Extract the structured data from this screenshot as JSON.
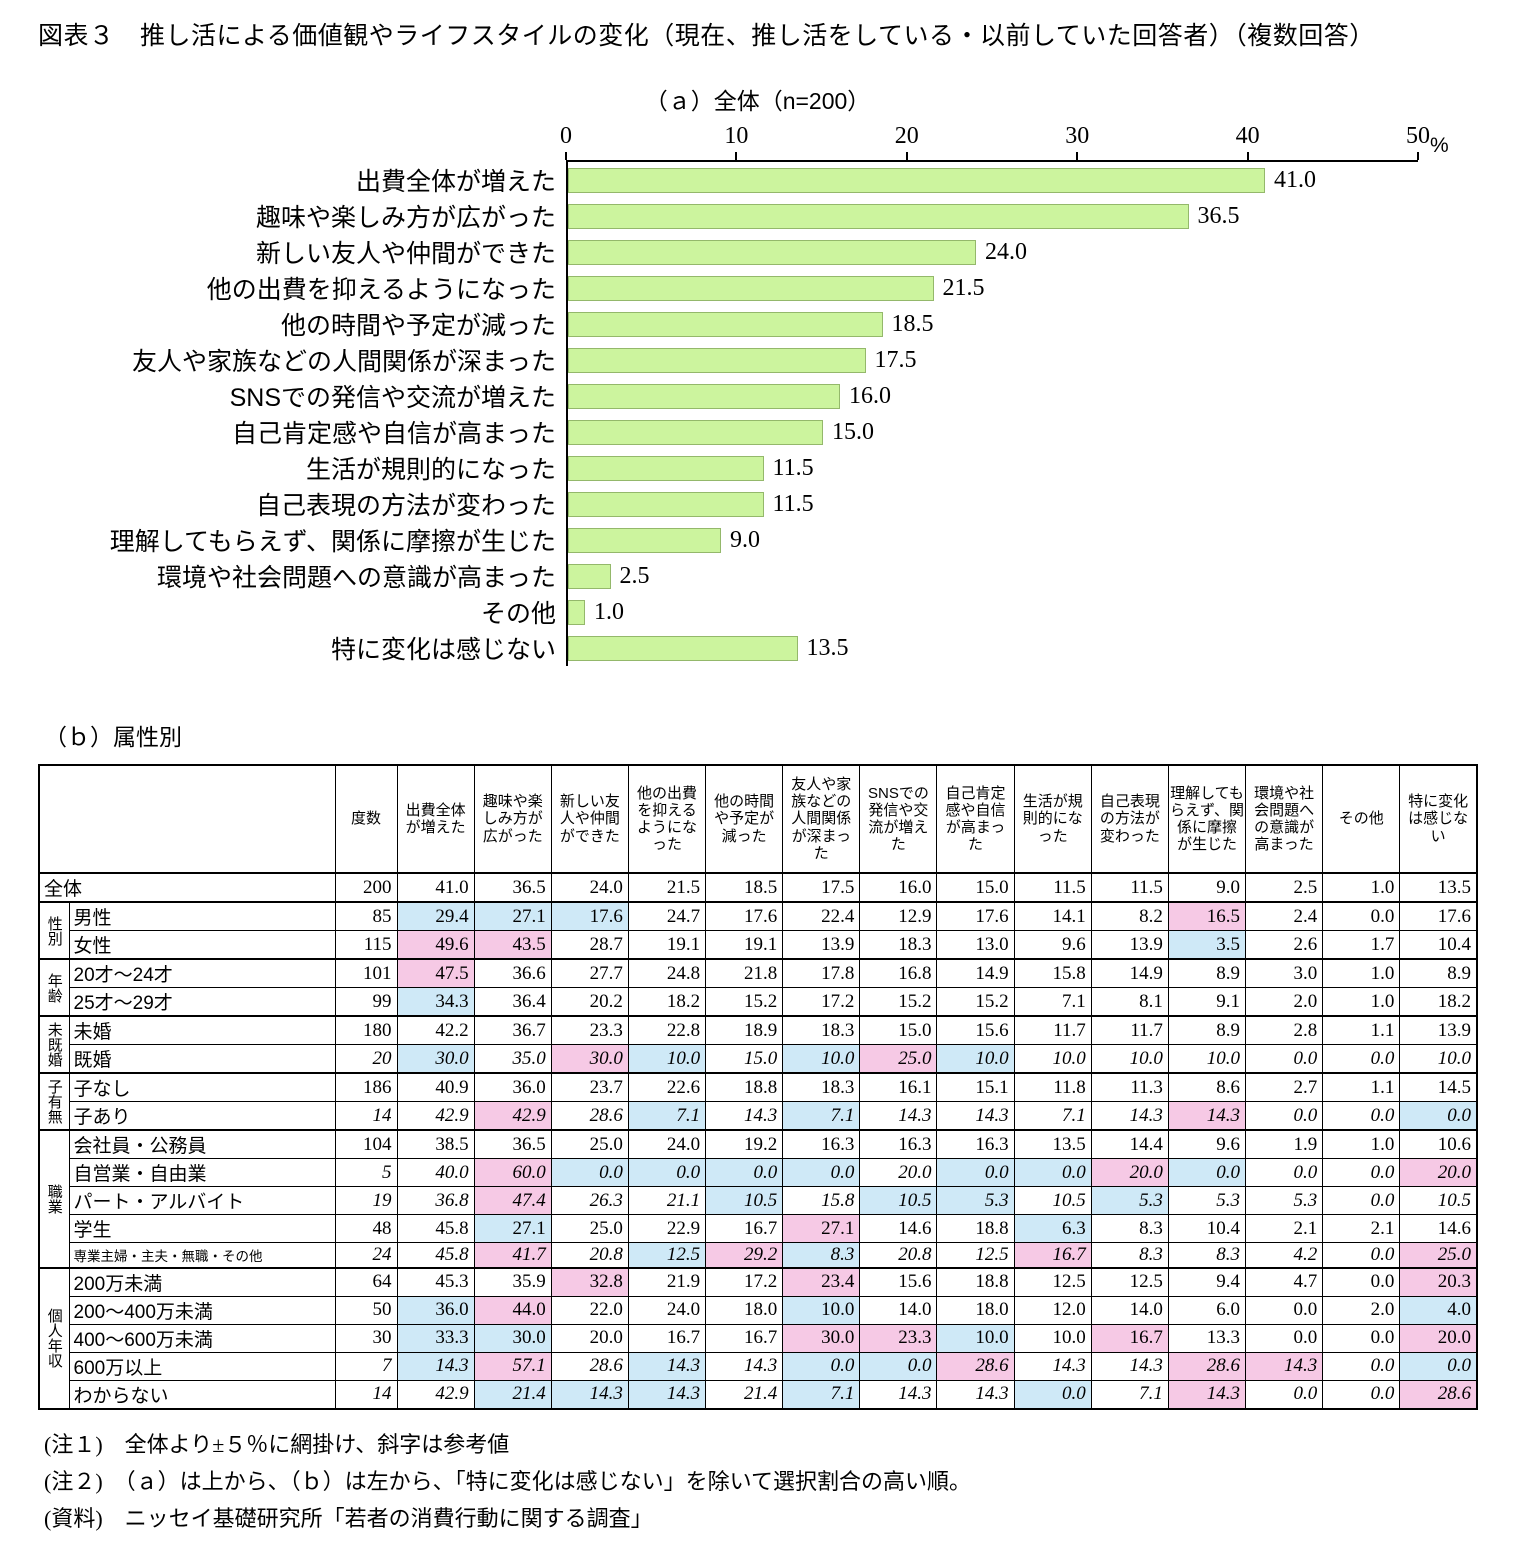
{
  "figure_title": "図表３　推し活による価値観やライフスタイルの変化（現在、推し活をしている・以前していた回答者）（複数回答）",
  "panel_a_label": "（ａ）全体（n=200）",
  "panel_b_label": "（ｂ）属性別",
  "axis_unit": "%",
  "colors": {
    "bar_fill": "#ccf49e",
    "bar_border": "#94b86b",
    "shade_higher": "#f6c9e5",
    "shade_lower": "#cfe9f7"
  },
  "shading_rule": {
    "threshold_pct": 5,
    "higher_means": "pink",
    "lower_means": "blue",
    "italic_means": "参考値"
  },
  "chart_data": [
    {
      "type": "bar",
      "orientation": "horizontal",
      "title": "（ａ）全体（n=200）",
      "categories": [
        "出費全体が増えた",
        "趣味や楽しみ方が広がった",
        "新しい友人や仲間ができた",
        "他の出費を抑えるようになった",
        "他の時間や予定が減った",
        "友人や家族などの人間関係が深まった",
        "SNSでの発信や交流が増えた",
        "自己肯定感や自信が高まった",
        "生活が規則的になった",
        "自己表現の方法が変わった",
        "理解してもらえず、関係に摩擦が生じた",
        "環境や社会問題への意識が高まった",
        "その他",
        "特に変化は感じない"
      ],
      "values": [
        41.0,
        36.5,
        24.0,
        21.5,
        18.5,
        17.5,
        16.0,
        15.0,
        11.5,
        11.5,
        9.0,
        2.5,
        1.0,
        13.5
      ],
      "xlim": [
        0,
        50
      ],
      "xticks": [
        0,
        10,
        20,
        30,
        40,
        50
      ],
      "unit": "%",
      "grid": false,
      "legend": "none"
    },
    {
      "type": "table",
      "title": "（ｂ）属性別",
      "columns": [
        "度数",
        "出費全体が増えた",
        "趣味や楽しみ方が広がった",
        "新しい友人や仲間ができた",
        "他の出費を抑えるようになった",
        "他の時間や予定が減った",
        "友人や家族などの人間関係が深まった",
        "SNSでの発信や交流が増えた",
        "自己肯定感や自信が高まった",
        "生活が規則的になった",
        "自己表現の方法が変わった",
        "理解してもらえず、関係に摩擦が生じた",
        "環境や社会問題への意識が高まった",
        "その他",
        "特に変化は感じない"
      ],
      "rows": [
        {
          "label": "全体",
          "n": 200,
          "italic": false,
          "values": [
            41.0,
            36.5,
            24.0,
            21.5,
            18.5,
            17.5,
            16.0,
            15.0,
            11.5,
            11.5,
            9.0,
            2.5,
            1.0,
            13.5
          ]
        },
        {
          "group": "性別",
          "span": 2,
          "label": "男性",
          "n": 85,
          "italic": false,
          "values": [
            29.4,
            27.1,
            17.6,
            24.7,
            17.6,
            22.4,
            12.9,
            17.6,
            14.1,
            8.2,
            16.5,
            2.4,
            0.0,
            17.6
          ]
        },
        {
          "label": "女性",
          "n": 115,
          "italic": false,
          "values": [
            49.6,
            43.5,
            28.7,
            19.1,
            19.1,
            13.9,
            18.3,
            13.0,
            9.6,
            13.9,
            3.5,
            2.6,
            1.7,
            10.4
          ]
        },
        {
          "group": "年齢",
          "span": 2,
          "label": "20才～24才",
          "n": 101,
          "italic": false,
          "values": [
            47.5,
            36.6,
            27.7,
            24.8,
            21.8,
            17.8,
            16.8,
            14.9,
            15.8,
            14.9,
            8.9,
            3.0,
            1.0,
            8.9
          ]
        },
        {
          "label": "25才～29才",
          "n": 99,
          "italic": false,
          "values": [
            34.3,
            36.4,
            20.2,
            18.2,
            15.2,
            17.2,
            15.2,
            15.2,
            7.1,
            8.1,
            9.1,
            2.0,
            1.0,
            18.2
          ]
        },
        {
          "group": "未既婚",
          "span": 2,
          "label": "未婚",
          "n": 180,
          "italic": false,
          "values": [
            42.2,
            36.7,
            23.3,
            22.8,
            18.9,
            18.3,
            15.0,
            15.6,
            11.7,
            11.7,
            8.9,
            2.8,
            1.1,
            13.9
          ]
        },
        {
          "label": "既婚",
          "n": 20,
          "italic": true,
          "values": [
            30.0,
            35.0,
            30.0,
            10.0,
            15.0,
            10.0,
            25.0,
            10.0,
            10.0,
            10.0,
            10.0,
            0.0,
            0.0,
            10.0
          ]
        },
        {
          "group": "子有無",
          "span": 2,
          "label": "子なし",
          "n": 186,
          "italic": false,
          "values": [
            40.9,
            36.0,
            23.7,
            22.6,
            18.8,
            18.3,
            16.1,
            15.1,
            11.8,
            11.3,
            8.6,
            2.7,
            1.1,
            14.5
          ]
        },
        {
          "label": "子あり",
          "n": 14,
          "italic": true,
          "values": [
            42.9,
            42.9,
            28.6,
            7.1,
            14.3,
            7.1,
            14.3,
            14.3,
            7.1,
            14.3,
            14.3,
            0.0,
            0.0,
            0.0
          ]
        },
        {
          "group": "職業",
          "span": 5,
          "label": "会社員・公務員",
          "n": 104,
          "italic": false,
          "values": [
            38.5,
            36.5,
            25.0,
            24.0,
            19.2,
            16.3,
            16.3,
            16.3,
            13.5,
            14.4,
            9.6,
            1.9,
            1.0,
            10.6
          ]
        },
        {
          "label": "自営業・自由業",
          "n": 5,
          "italic": true,
          "values": [
            40.0,
            60.0,
            0.0,
            0.0,
            0.0,
            0.0,
            20.0,
            0.0,
            0.0,
            20.0,
            0.0,
            0.0,
            0.0,
            20.0
          ]
        },
        {
          "label": "パート・アルバイト",
          "n": 19,
          "italic": true,
          "values": [
            36.8,
            47.4,
            26.3,
            21.1,
            10.5,
            15.8,
            10.5,
            5.3,
            10.5,
            5.3,
            5.3,
            5.3,
            0.0,
            10.5
          ]
        },
        {
          "label": "学生",
          "n": 48,
          "italic": false,
          "values": [
            45.8,
            27.1,
            25.0,
            22.9,
            16.7,
            27.1,
            14.6,
            18.8,
            6.3,
            8.3,
            10.4,
            2.1,
            2.1,
            14.6
          ]
        },
        {
          "label": "専業主婦・主夫・無職・その他",
          "n": 24,
          "italic": true,
          "small": true,
          "values": [
            45.8,
            41.7,
            20.8,
            12.5,
            29.2,
            8.3,
            20.8,
            12.5,
            16.7,
            8.3,
            8.3,
            4.2,
            0.0,
            25.0
          ]
        },
        {
          "group": "個人年収",
          "span": 5,
          "label": "200万未満",
          "n": 64,
          "italic": false,
          "values": [
            45.3,
            35.9,
            32.8,
            21.9,
            17.2,
            23.4,
            15.6,
            18.8,
            12.5,
            12.5,
            9.4,
            4.7,
            0.0,
            20.3
          ]
        },
        {
          "label": "200～400万未満",
          "n": 50,
          "italic": false,
          "values": [
            36.0,
            44.0,
            22.0,
            24.0,
            18.0,
            10.0,
            14.0,
            18.0,
            12.0,
            14.0,
            6.0,
            0.0,
            2.0,
            4.0
          ]
        },
        {
          "label": "400～600万未満",
          "n": 30,
          "italic": false,
          "values": [
            33.3,
            30.0,
            20.0,
            16.7,
            16.7,
            30.0,
            23.3,
            10.0,
            10.0,
            16.7,
            13.3,
            0.0,
            0.0,
            20.0
          ]
        },
        {
          "label": "600万以上",
          "n": 7,
          "italic": true,
          "values": [
            14.3,
            57.1,
            28.6,
            14.3,
            14.3,
            0.0,
            0.0,
            28.6,
            14.3,
            14.3,
            28.6,
            14.3,
            0.0,
            0.0
          ]
        },
        {
          "label": "わからない",
          "n": 14,
          "italic": true,
          "values": [
            42.9,
            21.4,
            14.3,
            14.3,
            21.4,
            7.1,
            14.3,
            14.3,
            0.0,
            7.1,
            14.3,
            0.0,
            0.0,
            28.6
          ]
        }
      ]
    }
  ],
  "notes": [
    "(注１)　全体より±５％に網掛け、斜字は参考値",
    "(注２)　（ａ）は上から、（ｂ）は左から、「特に変化は感じない」を除いて選択割合の高い順。",
    "(資料)　ニッセイ基礎研究所「若者の消費行動に関する調査」"
  ]
}
